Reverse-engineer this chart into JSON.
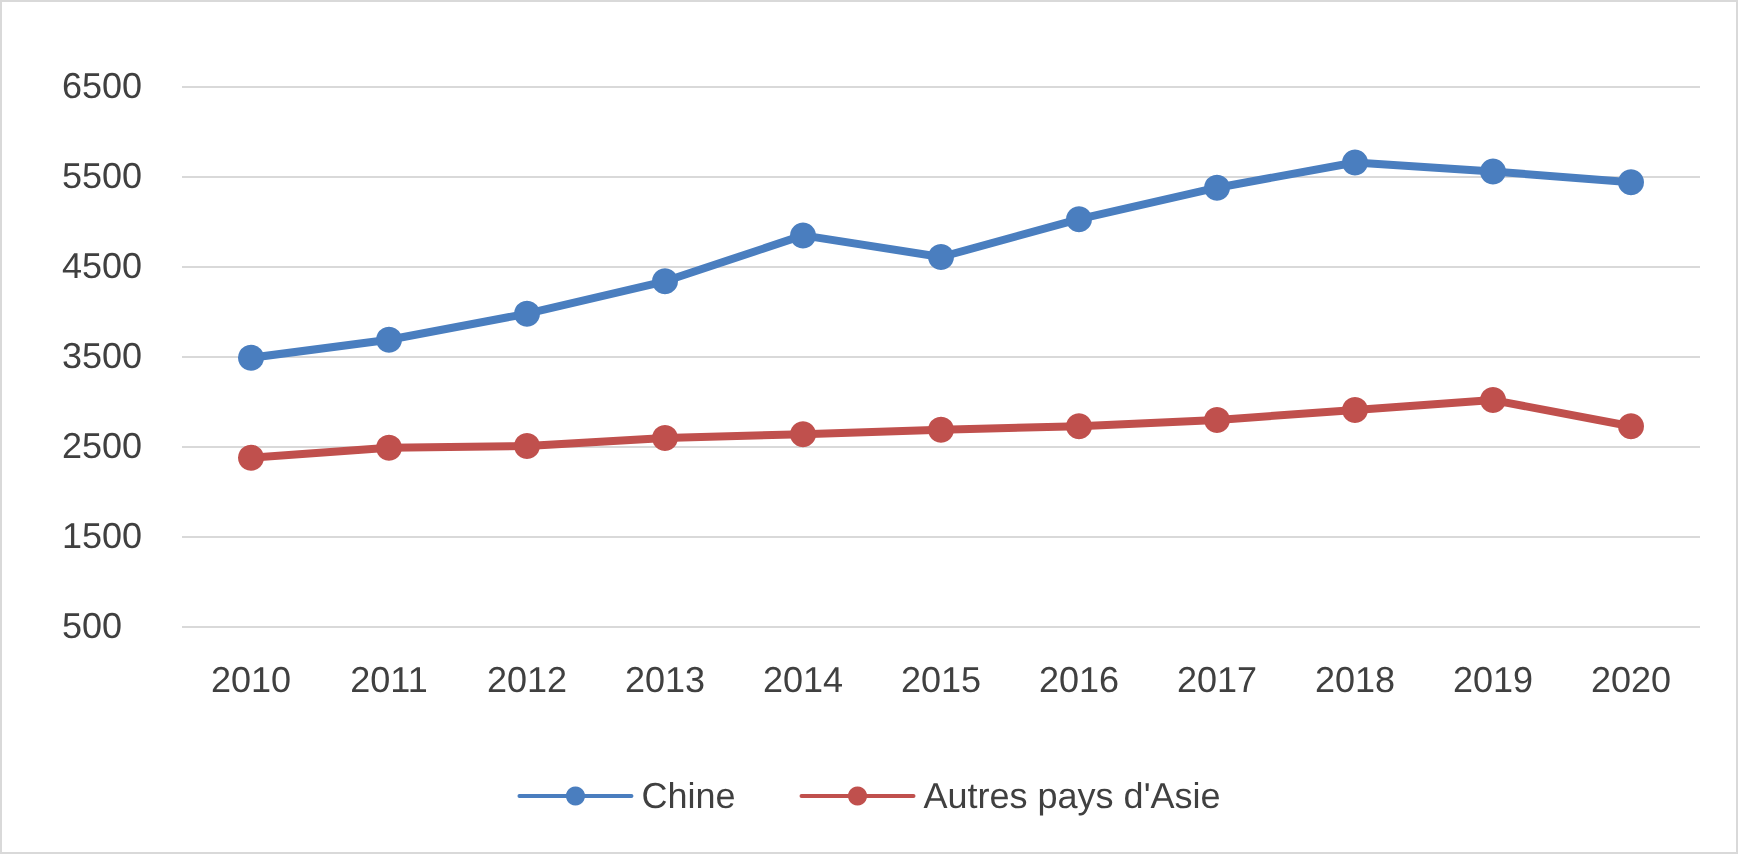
{
  "chart_data": {
    "type": "line",
    "categories": [
      "2010",
      "2011",
      "2012",
      "2013",
      "2014",
      "2015",
      "2016",
      "2017",
      "2018",
      "2019",
      "2020"
    ],
    "series": [
      {
        "name": "Chine",
        "color": "#4a7ebf",
        "values": [
          3480,
          3680,
          3970,
          4330,
          4840,
          4600,
          5020,
          5370,
          5650,
          5550,
          5430
        ]
      },
      {
        "name": "Autres pays d'Asie",
        "color": "#c0504d",
        "values": [
          2370,
          2480,
          2500,
          2590,
          2630,
          2680,
          2720,
          2790,
          2900,
          3010,
          2720
        ]
      }
    ],
    "ylim": [
      500,
      6500
    ],
    "yticks": [
      500,
      1500,
      2500,
      3500,
      4500,
      5500,
      6500
    ],
    "grid": "y",
    "legend": "bottom",
    "marker": "circle",
    "line_style": "solid"
  }
}
